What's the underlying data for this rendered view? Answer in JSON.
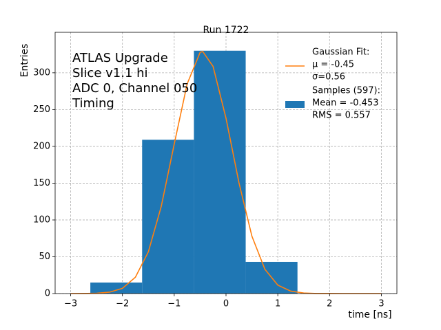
{
  "chart_data": {
    "type": "histogram",
    "title": "Run 1722",
    "x_label": "time [ns]",
    "y_label": "Entries",
    "annotations": [
      "ATLAS Upgrade",
      "Slice v1.1 hi",
      "ADC 0, Channel 050",
      "Timing"
    ],
    "xlim": [
      -3.3,
      3.3
    ],
    "ylim": [
      0,
      355
    ],
    "xticks": [
      {
        "value": -3,
        "label": "−3"
      },
      {
        "value": -2,
        "label": "−2"
      },
      {
        "value": -1,
        "label": "−1"
      },
      0,
      1,
      2,
      3
    ],
    "yticks": [
      0,
      50,
      100,
      150,
      200,
      250,
      300
    ],
    "grid": true,
    "series": [
      {
        "type": "line",
        "name": [
          "Gaussian Fit:",
          " μ = -0.45",
          " σ=0.56"
        ],
        "color": "#ff7f0e",
        "x": [
          -3,
          -2.75,
          -2.5,
          -2.25,
          -2,
          -1.75,
          -1.5,
          -1.25,
          -1,
          -0.75,
          -0.5,
          -0.45,
          -0.25,
          0,
          0.25,
          0.5,
          0.75,
          1,
          1.25,
          1.5,
          1.75,
          2,
          2.25,
          2.5,
          2.75,
          3
        ],
        "values": [
          0.01,
          0.07,
          0.4,
          1.9,
          7.1,
          22.2,
          56.7,
          118.6,
          203.1,
          285.0,
          327.7,
          329,
          308.7,
          238.2,
          150.6,
          78.0,
          33.1,
          11.5,
          3.3,
          0.8,
          0.1,
          0.02,
          0,
          0,
          0,
          0
        ]
      },
      {
        "type": "histogram",
        "name": [
          "Samples (597):",
          " Mean = -0.453",
          " RMS = 0.557"
        ],
        "color": "#1f77b4",
        "bins": [
          -2.62,
          -1.62,
          -0.62,
          0.38,
          1.38
        ],
        "values": [
          15,
          209,
          330,
          43
        ]
      }
    ]
  }
}
